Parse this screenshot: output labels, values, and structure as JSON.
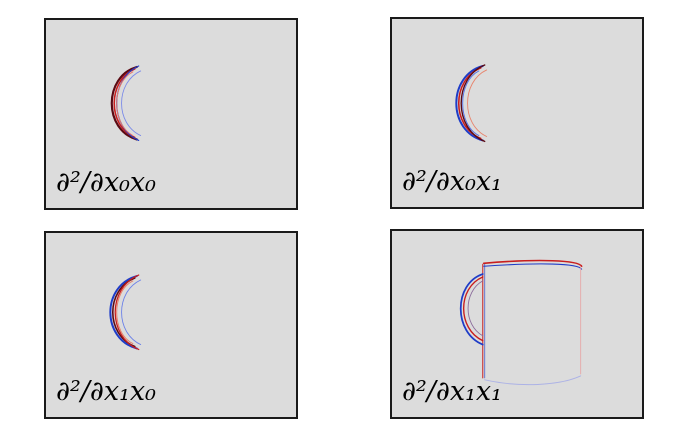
{
  "panels": [
    {
      "id": "p00",
      "label": "∂²/∂x₀x₀",
      "shape": "handle"
    },
    {
      "id": "p01",
      "label": "∂²/∂x₀x₁",
      "shape": "handle"
    },
    {
      "id": "p10",
      "label": "∂²/∂x₁x₀",
      "shape": "handle"
    },
    {
      "id": "p11",
      "label": "∂²/∂x₁x₁",
      "shape": "mug"
    }
  ],
  "colors": {
    "background": "#dcdcdc",
    "positive": "#c81e1e",
    "negative": "#1e3cc8",
    "dark": "#5a0a14"
  }
}
